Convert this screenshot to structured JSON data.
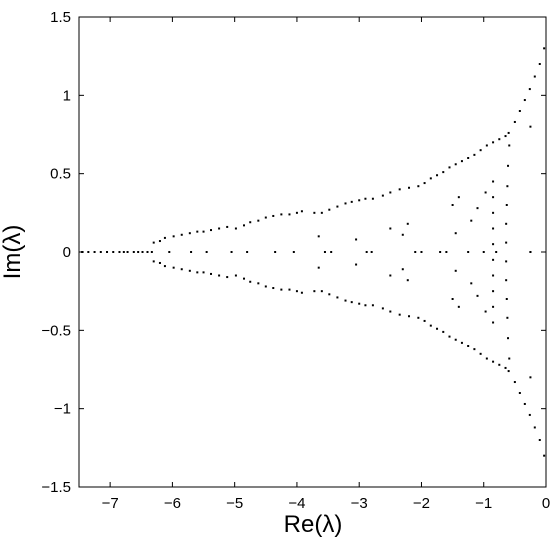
{
  "chart_data": {
    "type": "scatter",
    "title": "",
    "xlabel": "Re(λ)",
    "ylabel": "Im(λ)",
    "xlim": [
      -7.5,
      0
    ],
    "ylim": [
      -1.5,
      1.5
    ],
    "x_ticks": [
      -7,
      -6,
      -5,
      -4,
      -3,
      -2,
      -1,
      0
    ],
    "x_tick_labels": [
      "−7",
      "−6",
      "−5",
      "−4",
      "−3",
      "−2",
      "−1",
      "0"
    ],
    "y_ticks": [
      1.5,
      1,
      0.5,
      0,
      -0.5,
      -1,
      -1.5
    ],
    "y_tick_labels": [
      "1.5",
      "1",
      "0.5",
      "0",
      "−0.5",
      "−1",
      "−1.5"
    ],
    "grid": false,
    "legend": "none",
    "marker_color": "#000000",
    "series": [
      {
        "values": [
          [
            -7.45,
            0
          ],
          [
            -7.35,
            0
          ],
          [
            -7.25,
            0
          ],
          [
            -7.15,
            0
          ],
          [
            -7.05,
            0
          ],
          [
            -6.95,
            0
          ],
          [
            -6.85,
            0
          ],
          [
            -6.78,
            0
          ],
          [
            -6.72,
            0
          ],
          [
            -6.62,
            0
          ],
          [
            -6.55,
            0
          ],
          [
            -6.48,
            0
          ],
          [
            -6.4,
            0
          ],
          [
            -6.33,
            0
          ],
          [
            -6.3,
            0.06
          ],
          [
            -6.3,
            -0.06
          ],
          [
            -6.2,
            0.07
          ],
          [
            -6.2,
            -0.07
          ],
          [
            -6.12,
            0.09
          ],
          [
            -6.12,
            -0.09
          ],
          [
            -5.98,
            0.1
          ],
          [
            -5.98,
            -0.1
          ],
          [
            -5.85,
            0.11
          ],
          [
            -5.85,
            -0.11
          ],
          [
            -5.72,
            0.12
          ],
          [
            -5.72,
            -0.12
          ],
          [
            -5.6,
            0.13
          ],
          [
            -5.6,
            -0.13
          ],
          [
            -5.5,
            0.13
          ],
          [
            -5.5,
            -0.13
          ],
          [
            -5.38,
            0.14
          ],
          [
            -5.38,
            -0.14
          ],
          [
            -5.25,
            0.15
          ],
          [
            -5.25,
            -0.15
          ],
          [
            -5.12,
            0.16
          ],
          [
            -5.12,
            -0.16
          ],
          [
            -4.98,
            0.15
          ],
          [
            -4.98,
            -0.15
          ],
          [
            -4.85,
            0.17
          ],
          [
            -4.85,
            -0.17
          ],
          [
            -4.75,
            0.19
          ],
          [
            -4.75,
            -0.19
          ],
          [
            -4.62,
            0.2
          ],
          [
            -4.62,
            -0.2
          ],
          [
            -4.5,
            0.22
          ],
          [
            -4.5,
            -0.22
          ],
          [
            -4.38,
            0.23
          ],
          [
            -4.38,
            -0.23
          ],
          [
            -4.25,
            0.24
          ],
          [
            -4.25,
            -0.24
          ],
          [
            -4.12,
            0.24
          ],
          [
            -4.12,
            -0.24
          ],
          [
            -4.0,
            0.25
          ],
          [
            -4.0,
            -0.25
          ],
          [
            -3.92,
            0.26
          ],
          [
            -3.92,
            -0.26
          ],
          [
            -3.72,
            0.25
          ],
          [
            -3.72,
            -0.25
          ],
          [
            -3.6,
            0.25
          ],
          [
            -3.6,
            -0.25
          ],
          [
            -3.48,
            0.27
          ],
          [
            -3.48,
            -0.27
          ],
          [
            -3.35,
            0.29
          ],
          [
            -3.35,
            -0.29
          ],
          [
            -3.22,
            0.31
          ],
          [
            -3.22,
            -0.31
          ],
          [
            -3.12,
            0.32
          ],
          [
            -3.12,
            -0.32
          ],
          [
            -3.0,
            0.33
          ],
          [
            -3.0,
            -0.33
          ],
          [
            -2.9,
            0.34
          ],
          [
            -2.9,
            -0.34
          ],
          [
            -2.78,
            0.34
          ],
          [
            -2.78,
            -0.34
          ],
          [
            -2.62,
            0.36
          ],
          [
            -2.62,
            -0.36
          ],
          [
            -2.5,
            0.38
          ],
          [
            -2.5,
            -0.38
          ],
          [
            -2.35,
            0.4
          ],
          [
            -2.35,
            -0.4
          ],
          [
            -2.2,
            0.41
          ],
          [
            -2.2,
            -0.41
          ],
          [
            -2.05,
            0.42
          ],
          [
            -2.05,
            -0.42
          ],
          [
            -1.95,
            0.44
          ],
          [
            -1.95,
            -0.44
          ],
          [
            -1.85,
            0.47
          ],
          [
            -1.85,
            -0.47
          ],
          [
            -1.75,
            0.49
          ],
          [
            -1.75,
            -0.49
          ],
          [
            -1.65,
            0.51
          ],
          [
            -1.65,
            -0.51
          ],
          [
            -1.55,
            0.54
          ],
          [
            -1.55,
            -0.54
          ],
          [
            -1.45,
            0.56
          ],
          [
            -1.45,
            -0.56
          ],
          [
            -1.35,
            0.58
          ],
          [
            -1.35,
            -0.58
          ],
          [
            -1.25,
            0.6
          ],
          [
            -1.25,
            -0.6
          ],
          [
            -1.15,
            0.62
          ],
          [
            -1.15,
            -0.62
          ],
          [
            -1.05,
            0.65
          ],
          [
            -1.05,
            -0.65
          ],
          [
            -0.95,
            0.68
          ],
          [
            -0.95,
            -0.68
          ],
          [
            -0.85,
            0.7
          ],
          [
            -0.85,
            -0.7
          ],
          [
            -0.75,
            0.72
          ],
          [
            -0.75,
            -0.72
          ],
          [
            -0.65,
            0.74
          ],
          [
            -0.65,
            -0.74
          ],
          [
            -0.6,
            0.76
          ],
          [
            -0.6,
            -0.76
          ],
          [
            -0.5,
            0.83
          ],
          [
            -0.5,
            -0.83
          ],
          [
            -0.42,
            0.9
          ],
          [
            -0.42,
            -0.9
          ],
          [
            -0.34,
            0.97
          ],
          [
            -0.34,
            -0.97
          ],
          [
            -0.26,
            1.04
          ],
          [
            -0.26,
            -1.04
          ],
          [
            -0.18,
            1.12
          ],
          [
            -0.18,
            -1.12
          ],
          [
            -0.1,
            1.2
          ],
          [
            -0.1,
            -1.2
          ],
          [
            -0.03,
            1.3
          ],
          [
            -0.03,
            -1.3
          ],
          [
            -0.59,
            0.68
          ],
          [
            -0.59,
            -0.68
          ],
          [
            -0.61,
            0.55
          ],
          [
            -0.61,
            -0.55
          ],
          [
            -0.62,
            0.42
          ],
          [
            -0.62,
            -0.42
          ],
          [
            -0.63,
            0.3
          ],
          [
            -0.63,
            -0.3
          ],
          [
            -0.64,
            0.18
          ],
          [
            -0.64,
            -0.18
          ],
          [
            -0.64,
            0.06
          ],
          [
            -0.64,
            -0.06
          ],
          [
            -0.25,
            0.8
          ],
          [
            -0.25,
            -0.8
          ],
          [
            -0.85,
            0.45
          ],
          [
            -0.85,
            -0.45
          ],
          [
            -0.85,
            0.35
          ],
          [
            -0.85,
            -0.35
          ],
          [
            -0.85,
            0.25
          ],
          [
            -0.85,
            -0.25
          ],
          [
            -0.85,
            0.15
          ],
          [
            -0.85,
            -0.15
          ],
          [
            -0.85,
            0.05
          ],
          [
            -0.85,
            -0.05
          ],
          [
            -0.97,
            0.38
          ],
          [
            -0.97,
            -0.38
          ],
          [
            -1.1,
            0.28
          ],
          [
            -1.1,
            -0.28
          ],
          [
            -1.2,
            0.2
          ],
          [
            -1.2,
            -0.2
          ],
          [
            -1.4,
            0.35
          ],
          [
            -1.4,
            -0.35
          ],
          [
            -1.5,
            0.3
          ],
          [
            -1.5,
            -0.3
          ],
          [
            -1.6,
            0.0
          ],
          [
            -1.7,
            0.0
          ],
          [
            -1.45,
            0.12
          ],
          [
            -1.45,
            -0.12
          ],
          [
            -2.0,
            0.0
          ],
          [
            -2.1,
            0.0
          ],
          [
            -2.22,
            0.18
          ],
          [
            -2.22,
            -0.18
          ],
          [
            -2.3,
            0.11
          ],
          [
            -2.3,
            -0.11
          ],
          [
            -2.5,
            0.15
          ],
          [
            -2.5,
            -0.15
          ],
          [
            -2.8,
            0.0
          ],
          [
            -2.88,
            0.0
          ],
          [
            -3.05,
            0.08
          ],
          [
            -3.05,
            -0.08
          ],
          [
            -3.45,
            0.0
          ],
          [
            -3.55,
            0.0
          ],
          [
            -3.65,
            0.1
          ],
          [
            -3.65,
            -0.1
          ],
          [
            -4.05,
            0.0
          ],
          [
            -4.35,
            0.0
          ],
          [
            -4.8,
            0.0
          ],
          [
            -5.05,
            0.0
          ],
          [
            -5.45,
            0.0
          ],
          [
            -5.7,
            0.0
          ],
          [
            -6.05,
            0.0
          ],
          [
            -0.8,
            0.0
          ],
          [
            -1.0,
            0.0
          ],
          [
            -1.25,
            0.0
          ],
          [
            -0.25,
            0.0
          ],
          [
            -0.25,
            0.0
          ]
        ]
      }
    ]
  }
}
